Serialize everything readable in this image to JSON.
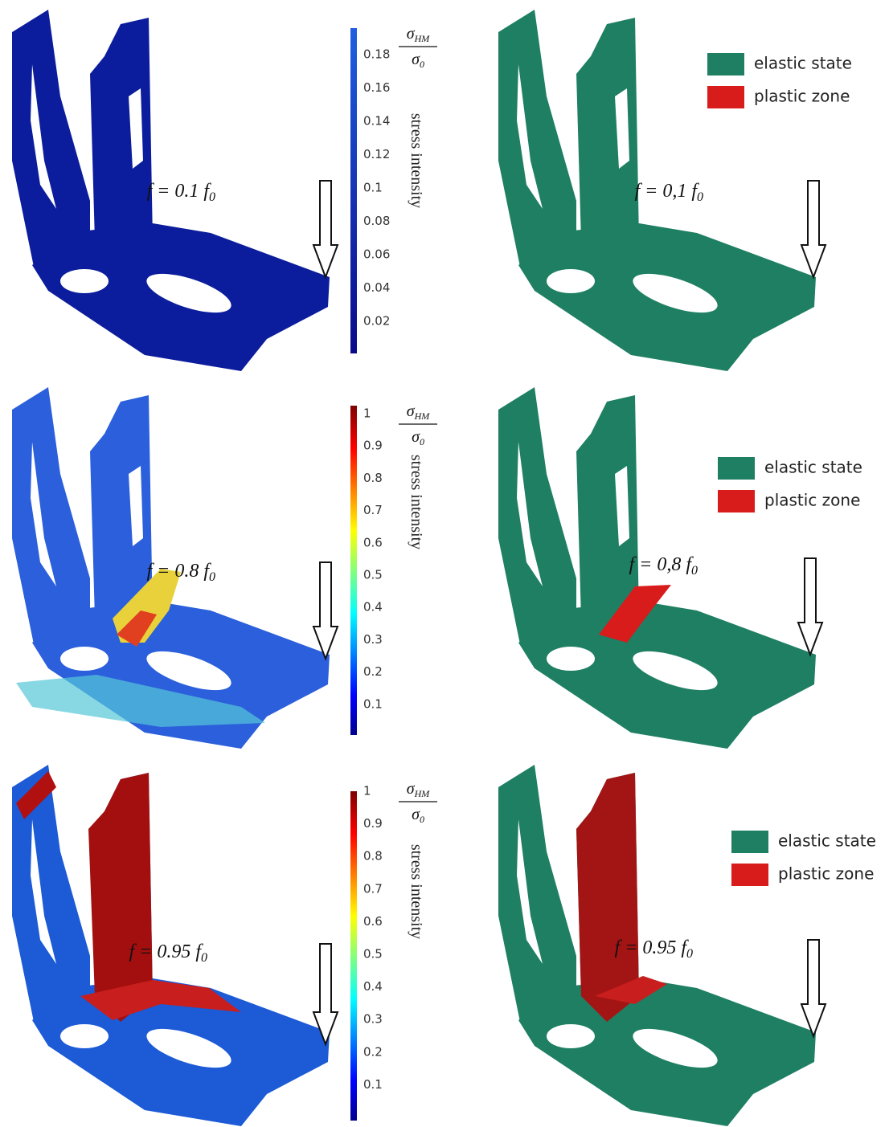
{
  "rows": [
    {
      "load": {
        "text": "f = 0.1 f",
        "sub": "0"
      },
      "load_right": {
        "text": "f = 0,1 f",
        "sub": "0"
      },
      "colorbar": {
        "ticks": [
          0.18,
          0.16,
          0.14,
          0.12,
          0.1,
          0.08,
          0.06,
          0.04,
          0.02
        ],
        "numerator": "σ",
        "numerator_sub": "HM",
        "denominator": "σ",
        "denominator_sub": "0",
        "label": "stress intensity"
      },
      "legend": [
        {
          "label": "elastic state",
          "color": "#1f7f63"
        },
        {
          "label": "plastic zone",
          "color": "#d81b1b"
        }
      ]
    },
    {
      "load": {
        "text": "f = 0.8 f",
        "sub": "0"
      },
      "load_right": {
        "text": "f = 0,8 f",
        "sub": "0"
      },
      "colorbar": {
        "ticks": [
          1,
          0.9,
          0.8,
          0.7,
          0.6,
          0.5,
          0.4,
          0.3,
          0.2,
          0.1
        ],
        "numerator": "σ",
        "numerator_sub": "HM",
        "denominator": "σ",
        "denominator_sub": "0",
        "label": "stress intensity"
      },
      "legend": [
        {
          "label": "elastic state",
          "color": "#1f7f63"
        },
        {
          "label": "plastic zone",
          "color": "#d81b1b"
        }
      ]
    },
    {
      "load": {
        "text": "f = 0.95 f",
        "sub": "0"
      },
      "load_right": {
        "text": "f = 0.95 f",
        "sub": "0"
      },
      "colorbar": {
        "ticks": [
          1,
          0.9,
          0.8,
          0.7,
          0.6,
          0.5,
          0.4,
          0.3,
          0.2,
          0.1
        ],
        "numerator": "σ",
        "numerator_sub": "HM",
        "denominator": "σ",
        "denominator_sub": "0",
        "label": "stress intensity"
      },
      "legend": [
        {
          "label": "elastic state",
          "color": "#1f7f63"
        },
        {
          "label": "plastic zone",
          "color": "#d81b1b"
        }
      ]
    }
  ]
}
